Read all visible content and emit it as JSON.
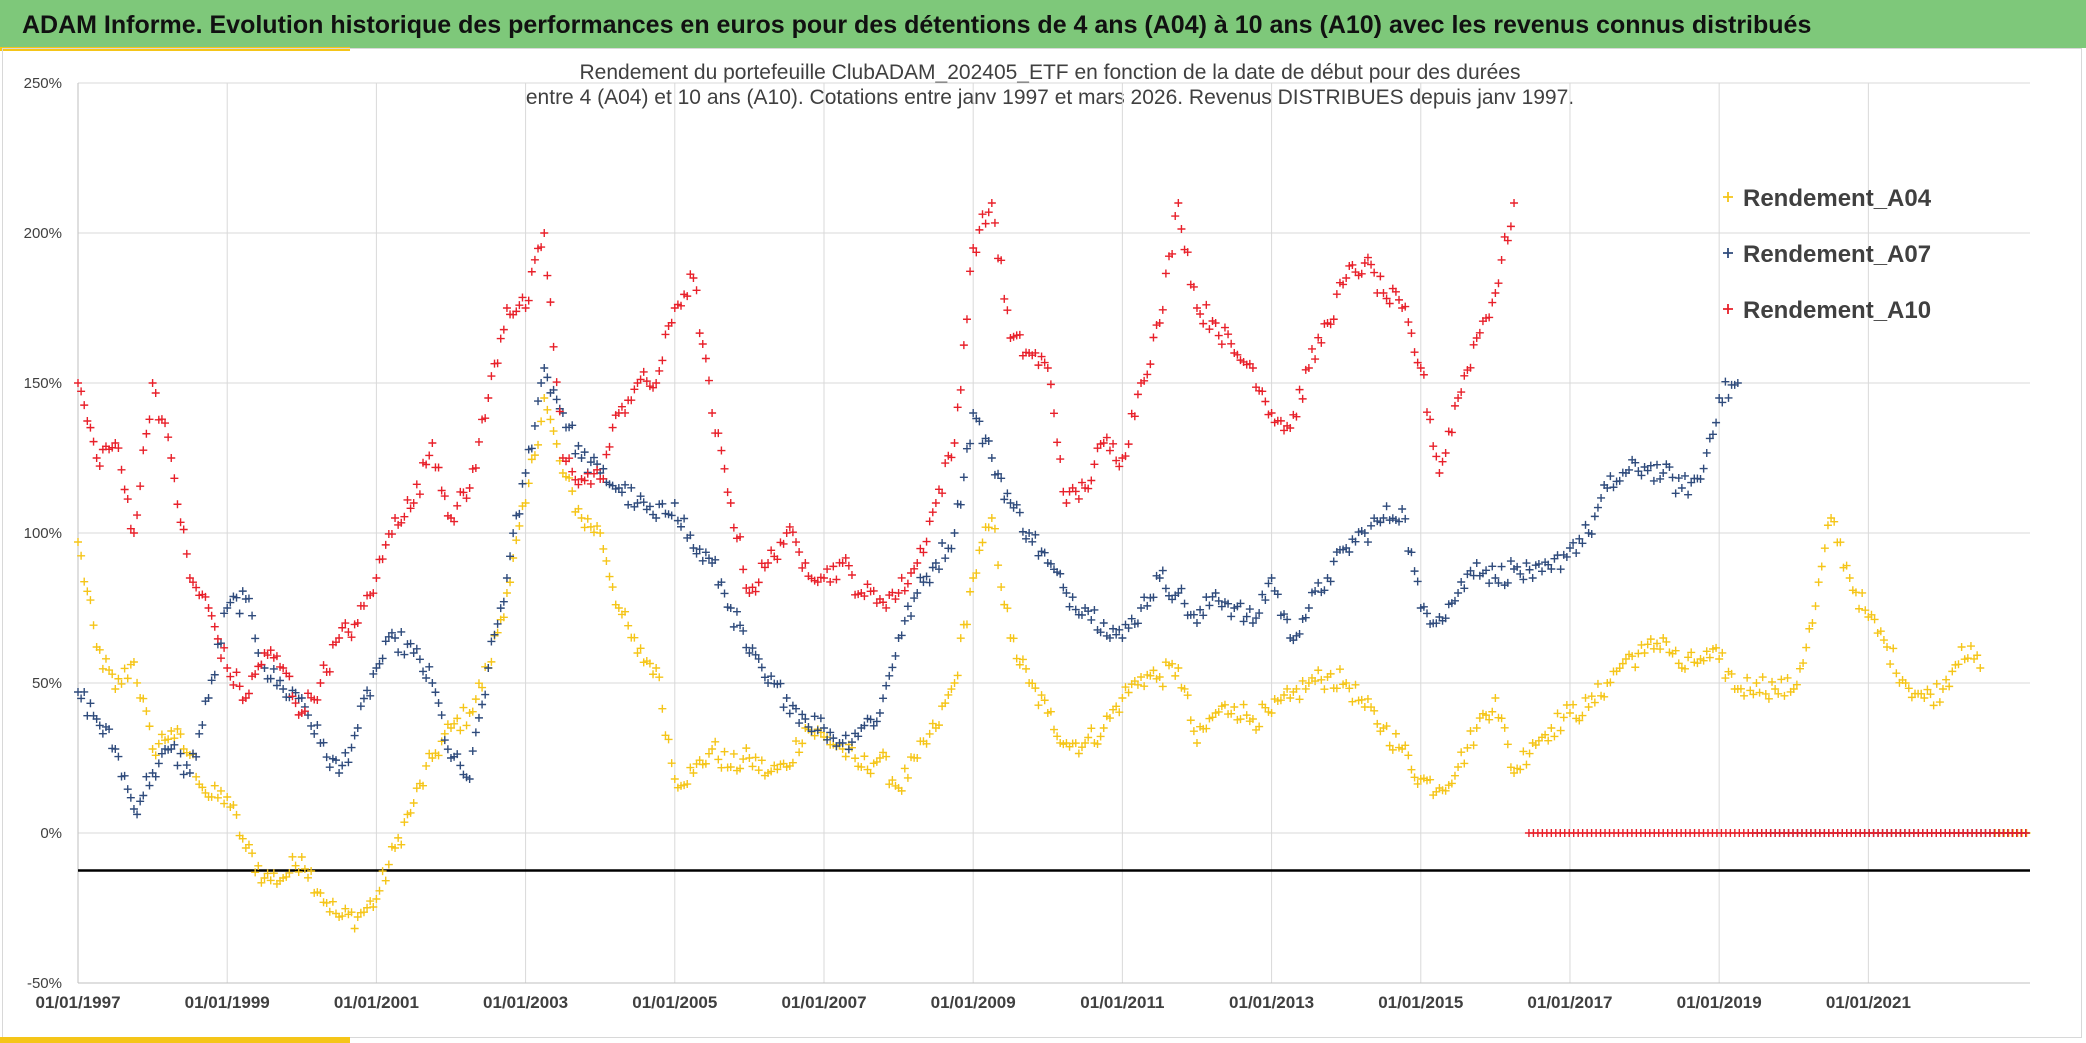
{
  "banner": {
    "title": "ADAM Informe. Evolution historique des performances en euros pour des détentions de 4 ans (A04) à 10 ans (A10) avec les revenus connus distribués"
  },
  "colors": {
    "banner_bg": "#7ec87a",
    "accent": "#f5c518",
    "A04": "#f5c518",
    "A07": "#2f4b7c",
    "A10": "#e8202a",
    "reference_line": "#000000"
  },
  "chart_data": {
    "type": "scatter",
    "title_lines": [
      "Rendement du portefeuille ClubADAM_202405_ETF  en fonction de la date de début pour des durées",
      "entre 4 (A04) et 10 ans (A10). Cotations entre janv 1997 et mars 2026. Revenus DISTRIBUES depuis janv 1997."
    ],
    "x_axis": {
      "type": "date",
      "range": [
        "1997-01-01",
        "2023-03-01"
      ],
      "tick_labels": [
        "01/01/1997",
        "01/01/1999",
        "01/01/2001",
        "01/01/2003",
        "01/01/2005",
        "01/01/2007",
        "01/01/2009",
        "01/01/2011",
        "01/01/2013",
        "01/01/2015",
        "01/01/2017",
        "01/01/2019",
        "01/01/2021"
      ]
    },
    "y_axis": {
      "range": [
        -50,
        250
      ],
      "unit": "%",
      "tick_labels": [
        "250%",
        "200%",
        "150%",
        "100%",
        "50%",
        "0%",
        "-50%"
      ]
    },
    "grid": true,
    "legend_position": "top-right",
    "reference_line_y": -12.5,
    "series": [
      {
        "name": "Rendement_A04",
        "points": [
          [
            "1997-01",
            97
          ],
          [
            "1997-04",
            62
          ],
          [
            "1997-07",
            48
          ],
          [
            "1997-10",
            57
          ],
          [
            "1998-01",
            28
          ],
          [
            "1998-04",
            34
          ],
          [
            "1998-07",
            26
          ],
          [
            "1998-10",
            12
          ],
          [
            "1999-01",
            12
          ],
          [
            "1999-04",
            -5
          ],
          [
            "1999-07",
            -15
          ],
          [
            "1999-10",
            -15
          ],
          [
            "2000-01",
            -8
          ],
          [
            "2000-04",
            -20
          ],
          [
            "2000-07",
            -28
          ],
          [
            "2000-10",
            -28
          ],
          [
            "2001-01",
            -22
          ],
          [
            "2001-04",
            -5
          ],
          [
            "2001-07",
            10
          ],
          [
            "2001-10",
            25
          ],
          [
            "2002-01",
            35
          ],
          [
            "2002-04",
            40
          ],
          [
            "2002-07",
            55
          ],
          [
            "2002-10",
            80
          ],
          [
            "2003-01",
            110
          ],
          [
            "2003-04",
            145
          ],
          [
            "2003-07",
            120
          ],
          [
            "2003-10",
            105
          ],
          [
            "2004-01",
            100
          ],
          [
            "2004-04",
            75
          ],
          [
            "2004-07",
            60
          ],
          [
            "2004-10",
            55
          ],
          [
            "2005-01",
            18
          ],
          [
            "2005-04",
            20
          ],
          [
            "2005-07",
            28
          ],
          [
            "2005-10",
            22
          ],
          [
            "2006-01",
            25
          ],
          [
            "2006-04",
            20
          ],
          [
            "2006-07",
            22
          ],
          [
            "2006-10",
            35
          ],
          [
            "2007-01",
            32
          ],
          [
            "2007-04",
            28
          ],
          [
            "2007-07",
            22
          ],
          [
            "2007-10",
            25
          ],
          [
            "2008-01",
            15
          ],
          [
            "2008-04",
            25
          ],
          [
            "2008-07",
            35
          ],
          [
            "2008-10",
            50
          ],
          [
            "2009-01",
            85
          ],
          [
            "2009-04",
            105
          ],
          [
            "2009-07",
            65
          ],
          [
            "2009-10",
            50
          ],
          [
            "2010-01",
            40
          ],
          [
            "2010-04",
            30
          ],
          [
            "2010-07",
            30
          ],
          [
            "2010-10",
            35
          ],
          [
            "2011-01",
            45
          ],
          [
            "2011-04",
            52
          ],
          [
            "2011-07",
            52
          ],
          [
            "2011-10",
            55
          ],
          [
            "2012-01",
            30
          ],
          [
            "2012-04",
            40
          ],
          [
            "2012-07",
            42
          ],
          [
            "2012-10",
            38
          ],
          [
            "2013-01",
            40
          ],
          [
            "2013-04",
            45
          ],
          [
            "2013-07",
            50
          ],
          [
            "2013-10",
            52
          ],
          [
            "2014-01",
            50
          ],
          [
            "2014-04",
            42
          ],
          [
            "2014-07",
            35
          ],
          [
            "2014-10",
            28
          ],
          [
            "2015-01",
            18
          ],
          [
            "2015-04",
            15
          ],
          [
            "2015-07",
            22
          ],
          [
            "2015-10",
            35
          ],
          [
            "2016-01",
            45
          ],
          [
            "2016-04",
            20
          ],
          [
            "2016-07",
            30
          ],
          [
            "2016-10",
            35
          ],
          [
            "2017-01",
            40
          ],
          [
            "2017-04",
            42
          ],
          [
            "2017-07",
            50
          ],
          [
            "2017-10",
            58
          ],
          [
            "2018-01",
            60
          ],
          [
            "2018-04",
            65
          ],
          [
            "2018-07",
            55
          ],
          [
            "2018-10",
            58
          ],
          [
            "2019-01",
            58
          ],
          [
            "2019-04",
            48
          ],
          [
            "2019-07",
            50
          ],
          [
            "2019-10",
            48
          ],
          [
            "2020-01",
            48
          ],
          [
            "2020-04",
            70
          ],
          [
            "2020-07",
            105
          ],
          [
            "2020-10",
            85
          ],
          [
            "2021-01",
            72
          ],
          [
            "2021-04",
            62
          ],
          [
            "2021-07",
            50
          ],
          [
            "2021-10",
            45
          ],
          [
            "2022-01",
            48
          ],
          [
            "2022-04",
            62
          ],
          [
            "2022-07",
            55
          ]
        ]
      },
      {
        "name": "Rendement_A07",
        "points": [
          [
            "1997-01",
            47
          ],
          [
            "1997-04",
            38
          ],
          [
            "1997-07",
            28
          ],
          [
            "1997-10",
            8
          ],
          [
            "1998-01",
            20
          ],
          [
            "1998-04",
            28
          ],
          [
            "1998-07",
            20
          ],
          [
            "1998-10",
            45
          ],
          [
            "1999-01",
            75
          ],
          [
            "1999-04",
            78
          ],
          [
            "1999-07",
            55
          ],
          [
            "1999-10",
            48
          ],
          [
            "2000-01",
            45
          ],
          [
            "2000-04",
            30
          ],
          [
            "2000-07",
            20
          ],
          [
            "2000-10",
            35
          ],
          [
            "2001-01",
            55
          ],
          [
            "2001-04",
            65
          ],
          [
            "2001-07",
            60
          ],
          [
            "2001-10",
            50
          ],
          [
            "2002-01",
            25
          ],
          [
            "2002-04",
            18
          ],
          [
            "2002-07",
            55
          ],
          [
            "2002-10",
            85
          ],
          [
            "2003-01",
            120
          ],
          [
            "2003-04",
            155
          ],
          [
            "2003-07",
            140
          ],
          [
            "2003-10",
            125
          ],
          [
            "2004-01",
            120
          ],
          [
            "2004-04",
            115
          ],
          [
            "2004-07",
            110
          ],
          [
            "2004-10",
            105
          ],
          [
            "2005-01",
            110
          ],
          [
            "2005-04",
            95
          ],
          [
            "2005-07",
            90
          ],
          [
            "2005-10",
            75
          ],
          [
            "2006-01",
            60
          ],
          [
            "2006-04",
            50
          ],
          [
            "2006-07",
            45
          ],
          [
            "2006-10",
            38
          ],
          [
            "2007-01",
            35
          ],
          [
            "2007-04",
            30
          ],
          [
            "2007-07",
            35
          ],
          [
            "2007-10",
            40
          ],
          [
            "2008-01",
            65
          ],
          [
            "2008-04",
            80
          ],
          [
            "2008-07",
            90
          ],
          [
            "2008-10",
            100
          ],
          [
            "2009-01",
            140
          ],
          [
            "2009-04",
            125
          ],
          [
            "2009-07",
            110
          ],
          [
            "2009-10",
            100
          ],
          [
            "2010-01",
            90
          ],
          [
            "2010-04",
            80
          ],
          [
            "2010-07",
            75
          ],
          [
            "2010-10",
            70
          ],
          [
            "2011-01",
            65
          ],
          [
            "2011-04",
            75
          ],
          [
            "2011-07",
            85
          ],
          [
            "2011-10",
            80
          ],
          [
            "2012-01",
            70
          ],
          [
            "2012-04",
            80
          ],
          [
            "2012-07",
            75
          ],
          [
            "2012-10",
            70
          ],
          [
            "2013-01",
            85
          ],
          [
            "2013-04",
            65
          ],
          [
            "2013-07",
            75
          ],
          [
            "2013-10",
            85
          ],
          [
            "2014-01",
            95
          ],
          [
            "2014-04",
            100
          ],
          [
            "2014-07",
            105
          ],
          [
            "2014-10",
            108
          ],
          [
            "2015-01",
            75
          ],
          [
            "2015-04",
            72
          ],
          [
            "2015-07",
            80
          ],
          [
            "2015-10",
            90
          ],
          [
            "2016-01",
            85
          ],
          [
            "2016-04",
            88
          ],
          [
            "2016-07",
            85
          ],
          [
            "2016-10",
            88
          ],
          [
            "2017-01",
            95
          ],
          [
            "2017-04",
            100
          ],
          [
            "2017-07",
            115
          ],
          [
            "2017-10",
            120
          ],
          [
            "2018-01",
            122
          ],
          [
            "2018-04",
            120
          ],
          [
            "2018-07",
            115
          ],
          [
            "2018-10",
            118
          ],
          [
            "2019-01",
            145
          ],
          [
            "2019-04",
            150
          ]
        ]
      },
      {
        "name": "Rendement_A10",
        "points": [
          [
            "1997-01",
            150
          ],
          [
            "1997-04",
            125
          ],
          [
            "1997-07",
            130
          ],
          [
            "1997-10",
            100
          ],
          [
            "1998-01",
            150
          ],
          [
            "1998-04",
            125
          ],
          [
            "1998-07",
            85
          ],
          [
            "1998-10",
            75
          ],
          [
            "1999-01",
            55
          ],
          [
            "1999-04",
            45
          ],
          [
            "1999-07",
            60
          ],
          [
            "1999-10",
            55
          ],
          [
            "2000-01",
            40
          ],
          [
            "2000-04",
            50
          ],
          [
            "2000-07",
            65
          ],
          [
            "2000-10",
            70
          ],
          [
            "2001-01",
            85
          ],
          [
            "2001-04",
            105
          ],
          [
            "2001-07",
            110
          ],
          [
            "2001-10",
            130
          ],
          [
            "2002-01",
            105
          ],
          [
            "2002-04",
            115
          ],
          [
            "2002-07",
            145
          ],
          [
            "2002-10",
            175
          ],
          [
            "2003-01",
            175
          ],
          [
            "2003-04",
            200
          ],
          [
            "2003-07",
            125
          ],
          [
            "2003-10",
            118
          ],
          [
            "2004-01",
            118
          ],
          [
            "2004-04",
            140
          ],
          [
            "2004-07",
            150
          ],
          [
            "2004-10",
            150
          ],
          [
            "2005-01",
            175
          ],
          [
            "2005-04",
            185
          ],
          [
            "2005-07",
            140
          ],
          [
            "2005-10",
            110
          ],
          [
            "2006-01",
            80
          ],
          [
            "2006-04",
            90
          ],
          [
            "2006-07",
            100
          ],
          [
            "2006-10",
            90
          ],
          [
            "2007-01",
            85
          ],
          [
            "2007-04",
            90
          ],
          [
            "2007-07",
            80
          ],
          [
            "2007-10",
            78
          ],
          [
            "2008-01",
            80
          ],
          [
            "2008-04",
            90
          ],
          [
            "2008-07",
            110
          ],
          [
            "2008-10",
            130
          ],
          [
            "2009-01",
            195
          ],
          [
            "2009-04",
            210
          ],
          [
            "2009-07",
            165
          ],
          [
            "2009-10",
            160
          ],
          [
            "2010-01",
            155
          ],
          [
            "2010-04",
            110
          ],
          [
            "2010-07",
            115
          ],
          [
            "2010-10",
            130
          ],
          [
            "2011-01",
            125
          ],
          [
            "2011-04",
            150
          ],
          [
            "2011-07",
            170
          ],
          [
            "2011-10",
            210
          ],
          [
            "2012-01",
            175
          ],
          [
            "2012-04",
            170
          ],
          [
            "2012-07",
            160
          ],
          [
            "2012-10",
            155
          ],
          [
            "2013-01",
            140
          ],
          [
            "2013-04",
            135
          ],
          [
            "2013-07",
            155
          ],
          [
            "2013-10",
            170
          ],
          [
            "2014-01",
            185
          ],
          [
            "2014-04",
            190
          ],
          [
            "2014-07",
            180
          ],
          [
            "2014-10",
            175
          ],
          [
            "2015-01",
            155
          ],
          [
            "2015-04",
            120
          ],
          [
            "2015-07",
            145
          ],
          [
            "2015-10",
            165
          ],
          [
            "2016-01",
            180
          ],
          [
            "2016-04",
            210
          ]
        ]
      }
    ]
  }
}
